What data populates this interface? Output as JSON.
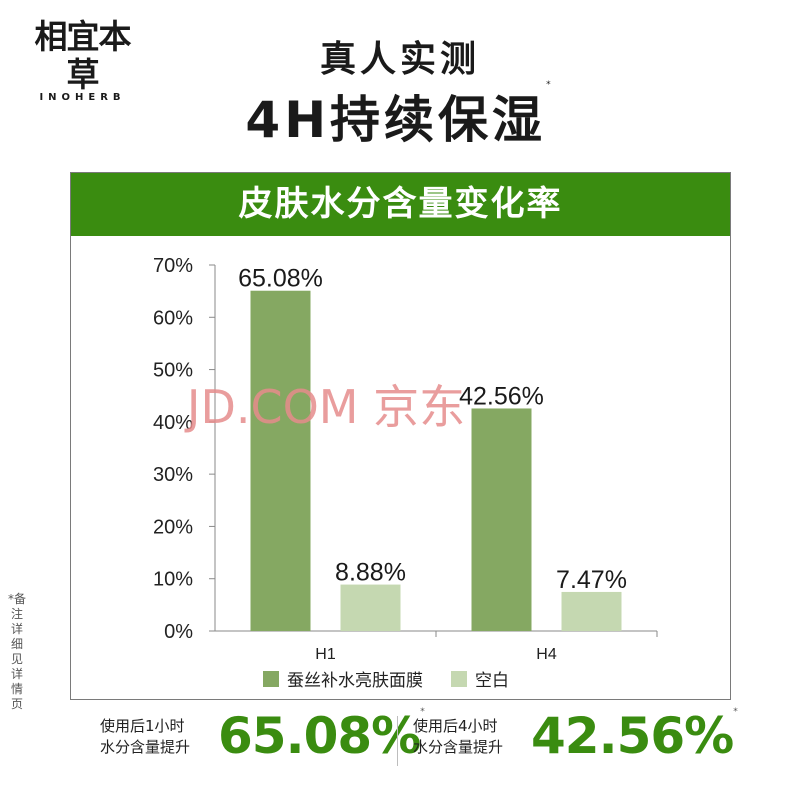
{
  "brand": {
    "name_cn": "相宜本草",
    "name_en": "INOHERB"
  },
  "headline": {
    "sub": "真人实测",
    "main": "4H持续保湿",
    "asterisk": "*"
  },
  "side_note": "*备注详细见详情页",
  "watermark": "JD.COM 京东",
  "colors": {
    "brand_green": "#3a8c10",
    "series_dark": "#85a862",
    "series_light": "#c5d8b1",
    "watermark": "#e58c8c"
  },
  "chart_data": {
    "type": "bar",
    "title": "皮肤水分含量变化率",
    "categories": [
      "H1",
      "H4"
    ],
    "series": [
      {
        "name": "蚕丝补水亮肤面膜",
        "values": [
          65.08,
          42.56
        ],
        "labels": [
          "65.08%",
          "42.56%"
        ],
        "color": "#85a862"
      },
      {
        "name": "空白",
        "values": [
          8.88,
          7.47
        ],
        "labels": [
          "8.88%",
          "7.47%"
        ],
        "color": "#c5d8b1"
      }
    ],
    "yticks": [
      "0%",
      "10%",
      "20%",
      "30%",
      "40%",
      "50%",
      "60%",
      "70%"
    ],
    "ylim": [
      0,
      70
    ],
    "legend_position": "bottom",
    "grid": false
  },
  "stats": [
    {
      "line1": "使用后1小时",
      "line2": "水分含量提升",
      "value": "65.08%",
      "asterisk": "*"
    },
    {
      "line1": "使用后4小时",
      "line2": "水分含量提升",
      "value": "42.56%",
      "asterisk": "*"
    }
  ]
}
